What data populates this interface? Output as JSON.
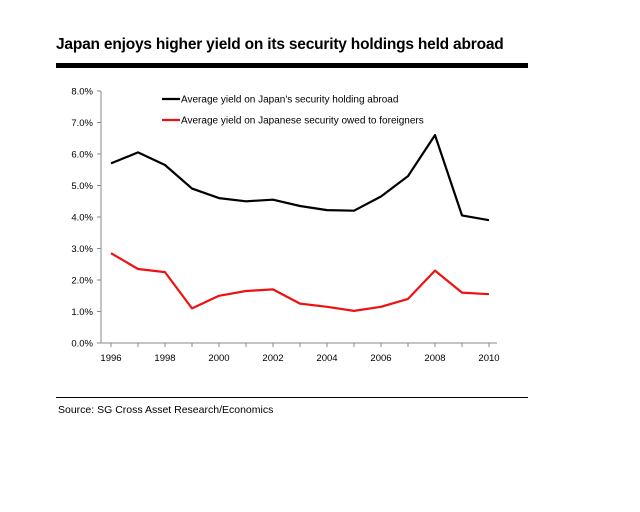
{
  "title": "Japan enjoys higher yield on its security holdings held abroad",
  "source": "Source: SG Cross Asset Research/Economics",
  "chart_data": {
    "type": "line",
    "title": "Japan enjoys higher yield on its security holdings held abroad",
    "xlabel": "",
    "ylabel": "",
    "x": [
      1996,
      1997,
      1998,
      1999,
      2000,
      2001,
      2002,
      2003,
      2004,
      2005,
      2006,
      2007,
      2008,
      2009,
      2010
    ],
    "xticks": [
      "1996",
      "1998",
      "2000",
      "2002",
      "2004",
      "2006",
      "2008",
      "2010"
    ],
    "xtick_values": [
      1996,
      1998,
      2000,
      2002,
      2004,
      2006,
      2008,
      2010
    ],
    "yticks": [
      "0.0%",
      "1.0%",
      "2.0%",
      "3.0%",
      "4.0%",
      "5.0%",
      "6.0%",
      "7.0%",
      "8.0%"
    ],
    "ytick_values": [
      0,
      1,
      2,
      3,
      4,
      5,
      6,
      7,
      8
    ],
    "ylim": [
      0,
      8
    ],
    "xlim": [
      1996,
      2010
    ],
    "grid": false,
    "legend_position": "top-left",
    "series": [
      {
        "name": "Average yield on Japan's security holding abroad",
        "color": "#000000",
        "values": [
          5.7,
          6.05,
          5.65,
          4.9,
          4.6,
          4.5,
          4.55,
          4.35,
          4.22,
          4.2,
          4.65,
          5.3,
          6.6,
          4.05,
          3.9
        ]
      },
      {
        "name": "Average yield on Japanese security owed to foreigners",
        "color": "#ee1111",
        "values": [
          2.85,
          2.35,
          2.25,
          1.1,
          1.5,
          1.65,
          1.7,
          1.25,
          1.15,
          1.02,
          1.15,
          1.4,
          2.3,
          1.6,
          1.55
        ]
      }
    ]
  }
}
